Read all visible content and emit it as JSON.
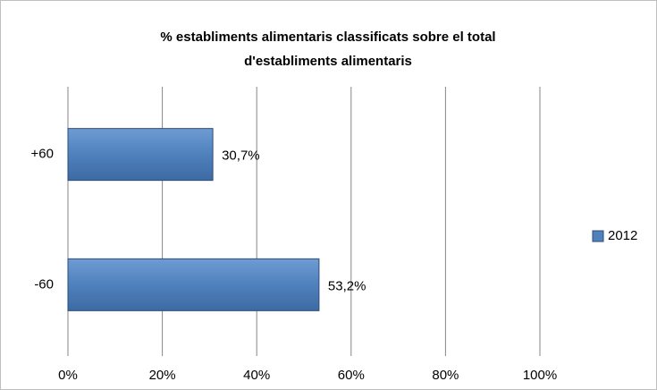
{
  "chart_data": {
    "type": "bar",
    "orientation": "horizontal",
    "title": [
      "% establiments alimentaris classificats sobre el total",
      "d'establiments alimentaris"
    ],
    "categories": [
      "+60",
      "-60"
    ],
    "series": [
      {
        "name": "2012",
        "color": "#4f81bd",
        "values": [
          30.7,
          53.2
        ],
        "value_labels": [
          "30,7%",
          "53,2%"
        ]
      }
    ],
    "xlim": [
      0,
      100
    ],
    "xticks": [
      {
        "value": 0,
        "label": "0%"
      },
      {
        "value": 20,
        "label": "20%"
      },
      {
        "value": 40,
        "label": "40%"
      },
      {
        "value": 60,
        "label": "60%"
      },
      {
        "value": 80,
        "label": "80%"
      },
      {
        "value": 100,
        "label": "100%"
      }
    ],
    "grid": true,
    "legend": "right"
  }
}
